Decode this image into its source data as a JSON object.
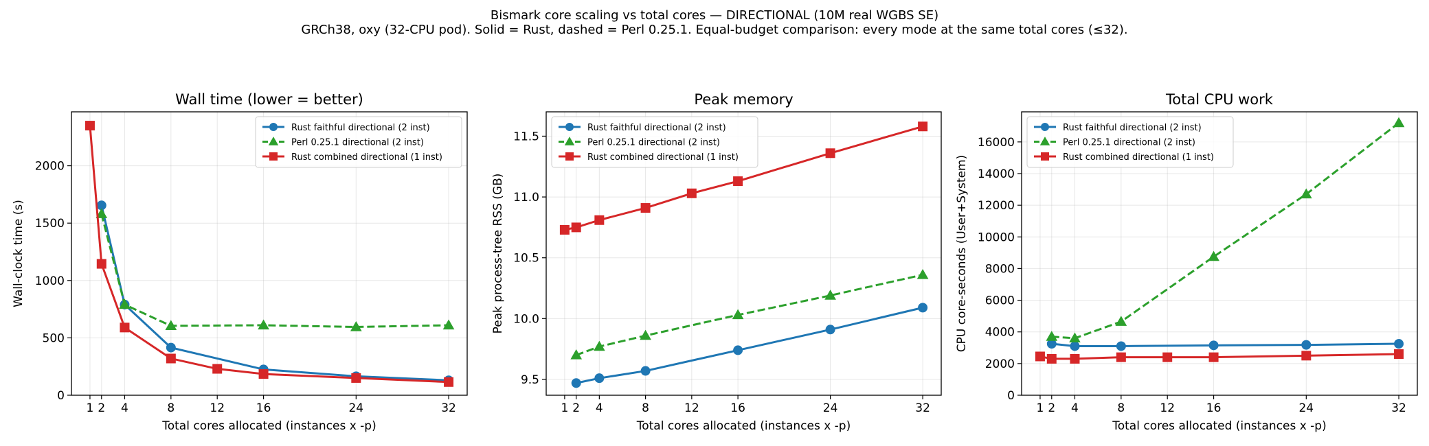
{
  "figure": {
    "title_line1": "Bismark core scaling vs total cores — DIRECTIONAL (10M real WGBS SE)",
    "title_line2": "GRCh38, oxy (32-CPU pod). Solid = Rust, dashed = Perl 0.25.1. Equal-budget comparison: every mode at the same total cores (≤32)."
  },
  "chart_data": [
    {
      "type": "line",
      "title": "Wall time  (lower = better)",
      "xlabel": "Total cores allocated  (instances x -p)",
      "ylabel": "Wall-clock time (s)",
      "xlim": [
        -0.6,
        33.6
      ],
      "ylim": [
        0,
        2470
      ],
      "xticks": [
        1,
        2,
        4,
        8,
        12,
        16,
        24,
        32
      ],
      "yticks": [
        0,
        500,
        1000,
        1500,
        2000
      ],
      "ytick_labels": [
        "0",
        "500",
        "1000",
        "1500",
        "2000"
      ],
      "grid": true,
      "legend": "top-right",
      "series": [
        {
          "name": "Rust faithful directional (2 inst)",
          "color": "#1f77b4",
          "marker": "circle",
          "dash": false,
          "x": [
            2,
            4,
            8,
            16,
            24,
            32
          ],
          "y": [
            1655,
            790,
            415,
            225,
            165,
            130
          ]
        },
        {
          "name": "Perl 0.25.1 directional (2 inst)",
          "color": "#2ca02c",
          "marker": "triangle",
          "dash": true,
          "x": [
            2,
            4,
            8,
            16,
            24,
            32
          ],
          "y": [
            1580,
            790,
            605,
            610,
            595,
            610
          ]
        },
        {
          "name": "Rust combined directional (1 inst)",
          "color": "#d62728",
          "marker": "square",
          "dash": false,
          "x": [
            1,
            2,
            4,
            8,
            12,
            16,
            24,
            32
          ],
          "y": [
            2350,
            1145,
            590,
            320,
            230,
            185,
            150,
            115
          ]
        }
      ]
    },
    {
      "type": "line",
      "title": "Peak memory",
      "xlabel": "Total cores allocated  (instances x -p)",
      "ylabel": "Peak process-tree RSS (GB)",
      "xlim": [
        -0.6,
        33.6
      ],
      "ylim": [
        9.37,
        11.7
      ],
      "xticks": [
        1,
        2,
        4,
        8,
        12,
        16,
        24,
        32
      ],
      "yticks": [
        9.5,
        10.0,
        10.5,
        11.0,
        11.5
      ],
      "ytick_labels": [
        "9.5",
        "10.0",
        "10.5",
        "11.0",
        "11.5"
      ],
      "grid": true,
      "legend": "top-left",
      "series": [
        {
          "name": "Rust faithful directional (2 inst)",
          "color": "#1f77b4",
          "marker": "circle",
          "dash": false,
          "x": [
            2,
            4,
            8,
            16,
            24,
            32
          ],
          "y": [
            9.47,
            9.51,
            9.57,
            9.74,
            9.91,
            10.09
          ]
        },
        {
          "name": "Perl 0.25.1 directional (2 inst)",
          "color": "#2ca02c",
          "marker": "triangle",
          "dash": true,
          "x": [
            2,
            4,
            8,
            16,
            24,
            32
          ],
          "y": [
            9.7,
            9.77,
            9.86,
            10.03,
            10.19,
            10.36
          ]
        },
        {
          "name": "Rust combined directional (1 inst)",
          "color": "#d62728",
          "marker": "square",
          "dash": false,
          "x": [
            1,
            2,
            4,
            8,
            12,
            16,
            24,
            32
          ],
          "y": [
            10.73,
            10.75,
            10.81,
            10.91,
            11.03,
            11.13,
            11.36,
            11.58
          ]
        }
      ]
    },
    {
      "type": "line",
      "title": "Total CPU work",
      "xlabel": "Total cores allocated  (instances x -p)",
      "ylabel": "CPU core-seconds (User+System)",
      "xlim": [
        -0.6,
        33.6
      ],
      "ylim": [
        0,
        17900
      ],
      "xticks": [
        1,
        2,
        4,
        8,
        12,
        16,
        24,
        32
      ],
      "yticks": [
        0,
        2000,
        4000,
        6000,
        8000,
        10000,
        12000,
        14000,
        16000
      ],
      "ytick_labels": [
        "0",
        "2000",
        "4000",
        "6000",
        "8000",
        "10000",
        "12000",
        "14000",
        "16000"
      ],
      "grid": true,
      "legend": "top-left",
      "series": [
        {
          "name": "Rust faithful directional (2 inst)",
          "color": "#1f77b4",
          "marker": "circle",
          "dash": false,
          "x": [
            2,
            4,
            8,
            16,
            24,
            32
          ],
          "y": [
            3250,
            3100,
            3100,
            3150,
            3180,
            3250
          ]
        },
        {
          "name": "Perl 0.25.1 directional (2 inst)",
          "color": "#2ca02c",
          "marker": "triangle",
          "dash": true,
          "x": [
            2,
            4,
            8,
            16,
            24,
            32
          ],
          "y": [
            3700,
            3600,
            4650,
            8750,
            12700,
            17200
          ]
        },
        {
          "name": "Rust combined directional (1 inst)",
          "color": "#d62728",
          "marker": "square",
          "dash": false,
          "x": [
            1,
            2,
            4,
            8,
            12,
            16,
            24,
            32
          ],
          "y": [
            2450,
            2300,
            2300,
            2400,
            2400,
            2400,
            2500,
            2600
          ]
        }
      ]
    }
  ]
}
